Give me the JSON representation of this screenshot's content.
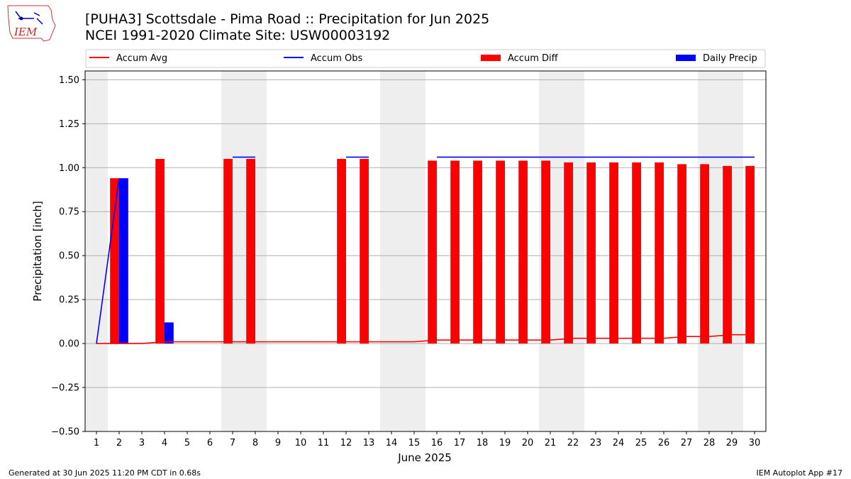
{
  "header": {
    "title": "[PUHA3] Scottsdale - Pima Road :: Precipitation for Jun 2025",
    "subtitle": "NCEI 1991-2020 Climate Site: USW00003192",
    "logo_text": "IEM"
  },
  "footer": {
    "generated": "Generated at 30 Jun 2025 11:20 PM CDT in 0.68s",
    "app": "IEM Autoplot App #17"
  },
  "chart_data": {
    "type": "bar",
    "title": "[PUHA3] Scottsdale - Pima Road :: Precipitation for Jun 2025",
    "subtitle": "NCEI 1991-2020 Climate Site: USW00003192",
    "xlabel": "June 2025",
    "ylabel": "Precipitation [inch]",
    "ylim": [
      -0.5,
      1.55
    ],
    "xlim": [
      0.5,
      30.5
    ],
    "yticks": [
      "−0.50",
      "−0.25",
      "0.00",
      "0.25",
      "0.50",
      "0.75",
      "1.00",
      "1.25",
      "1.50"
    ],
    "ytick_values": [
      -0.5,
      -0.25,
      0,
      0.25,
      0.5,
      0.75,
      1.0,
      1.25,
      1.5
    ],
    "categories": [
      "1",
      "2",
      "3",
      "4",
      "5",
      "6",
      "7",
      "8",
      "9",
      "10",
      "11",
      "12",
      "13",
      "14",
      "15",
      "16",
      "17",
      "18",
      "19",
      "20",
      "21",
      "22",
      "23",
      "24",
      "25",
      "26",
      "27",
      "28",
      "29",
      "30"
    ],
    "grid": "horizontal",
    "legend_placement": "top",
    "weekend_shading": [
      [
        0.5,
        1.5
      ],
      [
        6.5,
        8.5
      ],
      [
        13.5,
        15.5
      ],
      [
        20.5,
        22.5
      ],
      [
        27.5,
        29.5
      ]
    ],
    "series": [
      {
        "name": "Accum Avg",
        "kind": "line",
        "color": "#ff0000",
        "values": [
          0.0,
          0.0,
          0.0,
          0.01,
          0.01,
          0.01,
          0.01,
          0.01,
          0.01,
          0.01,
          0.01,
          0.01,
          0.01,
          0.01,
          0.01,
          0.02,
          0.02,
          0.02,
          0.02,
          0.02,
          0.02,
          0.03,
          0.03,
          0.03,
          0.03,
          0.03,
          0.04,
          0.04,
          0.05,
          0.05
        ]
      },
      {
        "name": "Accum Obs",
        "kind": "line",
        "color": "#0000ff",
        "values": [
          0.0,
          0.94,
          null,
          null,
          null,
          null,
          1.06,
          1.06,
          null,
          null,
          null,
          1.06,
          1.06,
          null,
          null,
          1.06,
          1.06,
          1.06,
          1.06,
          1.06,
          1.06,
          1.06,
          1.06,
          1.06,
          1.06,
          1.06,
          1.06,
          1.06,
          1.06,
          1.06
        ]
      },
      {
        "name": "Accum Diff",
        "kind": "bar",
        "color": "#ff0000",
        "values": [
          null,
          0.94,
          null,
          1.05,
          null,
          null,
          1.05,
          1.05,
          null,
          null,
          null,
          1.05,
          1.05,
          null,
          null,
          1.04,
          1.04,
          1.04,
          1.04,
          1.04,
          1.04,
          1.03,
          1.03,
          1.03,
          1.03,
          1.03,
          1.02,
          1.02,
          1.01,
          1.01
        ]
      },
      {
        "name": "Daily Precip",
        "kind": "bar",
        "color": "#0000ff",
        "values": [
          null,
          0.94,
          null,
          0.12,
          null,
          null,
          null,
          null,
          null,
          null,
          null,
          null,
          null,
          null,
          null,
          null,
          null,
          null,
          null,
          null,
          null,
          null,
          null,
          null,
          null,
          null,
          null,
          null,
          null,
          null
        ]
      }
    ]
  }
}
